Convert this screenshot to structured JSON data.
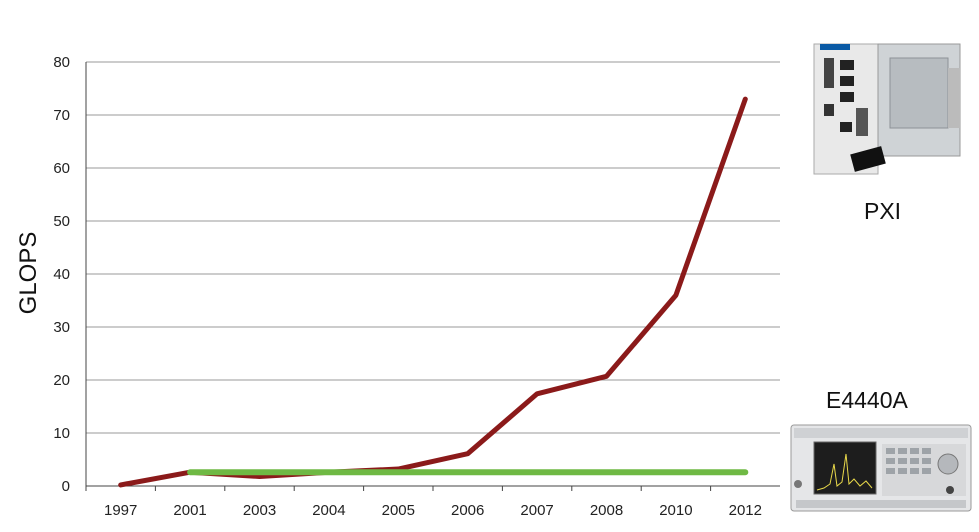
{
  "chart_data": {
    "type": "line",
    "categories": [
      "1997",
      "2001",
      "2003",
      "2004",
      "2005",
      "2006",
      "2007",
      "2008",
      "2010",
      "2012"
    ],
    "ylabel": "GLOPS",
    "xlabel": "",
    "title": "",
    "ylim": [
      0,
      80
    ],
    "yticks": [
      0,
      10,
      20,
      30,
      40,
      50,
      60,
      70,
      80
    ],
    "grid": true,
    "series": [
      {
        "values": [
          0.2,
          2.6,
          1.8,
          2.6,
          3.2,
          6.1,
          17.4,
          20.7,
          36.0,
          73.0
        ],
        "color": "#8b1a1a"
      },
      {
        "values": [
          null,
          2.6,
          2.6,
          2.6,
          2.6,
          2.6,
          2.6,
          2.6,
          2.6,
          2.6
        ],
        "color": "#6fb944"
      }
    ]
  },
  "products": {
    "pxi": {
      "label": "PXI",
      "icon": "pxi-chassis-icon"
    },
    "e4440a": {
      "label": "E4440A",
      "icon": "spectrum-analyzer-icon"
    }
  }
}
